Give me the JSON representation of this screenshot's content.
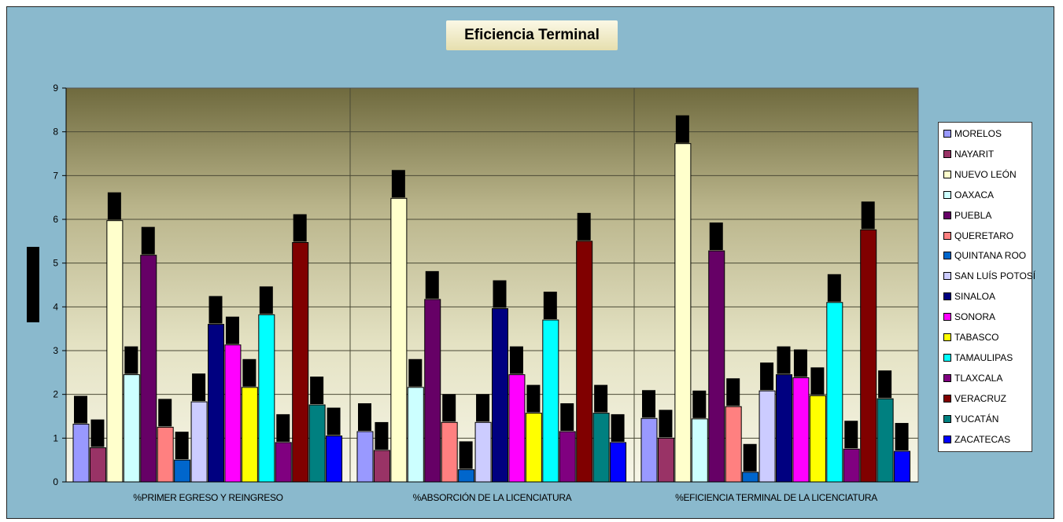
{
  "chart_data": {
    "type": "bar",
    "title": "Eficiencia Terminal",
    "xlabel": "",
    "ylabel": "",
    "ylim": [
      0,
      9
    ],
    "yticks": [
      "0",
      "1",
      "2",
      "3",
      "4",
      "5",
      "6",
      "7",
      "8",
      "9"
    ],
    "grid": true,
    "legend_position": "right",
    "categories": [
      "%PRIMER EGRESO Y REINGRESO",
      "%ABSORCIÓN DE LA LICENCIATURA",
      "%EFICIENCIA TERMINAL DE LA LICENCIATURA"
    ],
    "series": [
      {
        "name": "MORELOS",
        "color": "#9999ff",
        "values": [
          1.32,
          1.15,
          1.45
        ]
      },
      {
        "name": "NAYARIT",
        "color": "#993366",
        "values": [
          0.78,
          0.72,
          1.0
        ]
      },
      {
        "name": "NUEVO LEÓN",
        "color": "#ffffcc",
        "values": [
          5.97,
          6.48,
          7.73
        ]
      },
      {
        "name": "OAXACA",
        "color": "#ccffff",
        "values": [
          2.45,
          2.16,
          1.44
        ]
      },
      {
        "name": "PUEBLA",
        "color": "#660066",
        "values": [
          5.18,
          4.17,
          5.28
        ]
      },
      {
        "name": "QUERETARO",
        "color": "#ff8080",
        "values": [
          1.25,
          1.36,
          1.72
        ]
      },
      {
        "name": "QUINTANA ROO",
        "color": "#0066cc",
        "values": [
          0.5,
          0.28,
          0.22
        ]
      },
      {
        "name": "SAN LUÍS POTOSÍ",
        "color": "#ccccff",
        "values": [
          1.83,
          1.36,
          2.08
        ]
      },
      {
        "name": "SINALOA",
        "color": "#000080",
        "values": [
          3.6,
          3.96,
          2.45
        ]
      },
      {
        "name": "SONORA",
        "color": "#ff00ff",
        "values": [
          3.13,
          2.45,
          2.38
        ]
      },
      {
        "name": "TABASCO",
        "color": "#ffff00",
        "values": [
          2.16,
          1.57,
          1.97
        ]
      },
      {
        "name": "TAMAULIPAS",
        "color": "#00ffff",
        "values": [
          3.82,
          3.7,
          4.1
        ]
      },
      {
        "name": "TLAXCALA",
        "color": "#800080",
        "values": [
          0.9,
          1.15,
          0.75
        ]
      },
      {
        "name": "VERACRUZ",
        "color": "#800000",
        "values": [
          5.47,
          5.5,
          5.76
        ]
      },
      {
        "name": "YUCATÁN",
        "color": "#008080",
        "values": [
          1.76,
          1.57,
          1.9
        ]
      },
      {
        "name": "ZACATECAS",
        "color": "#0000ff",
        "values": [
          1.05,
          0.9,
          0.7
        ]
      }
    ]
  }
}
